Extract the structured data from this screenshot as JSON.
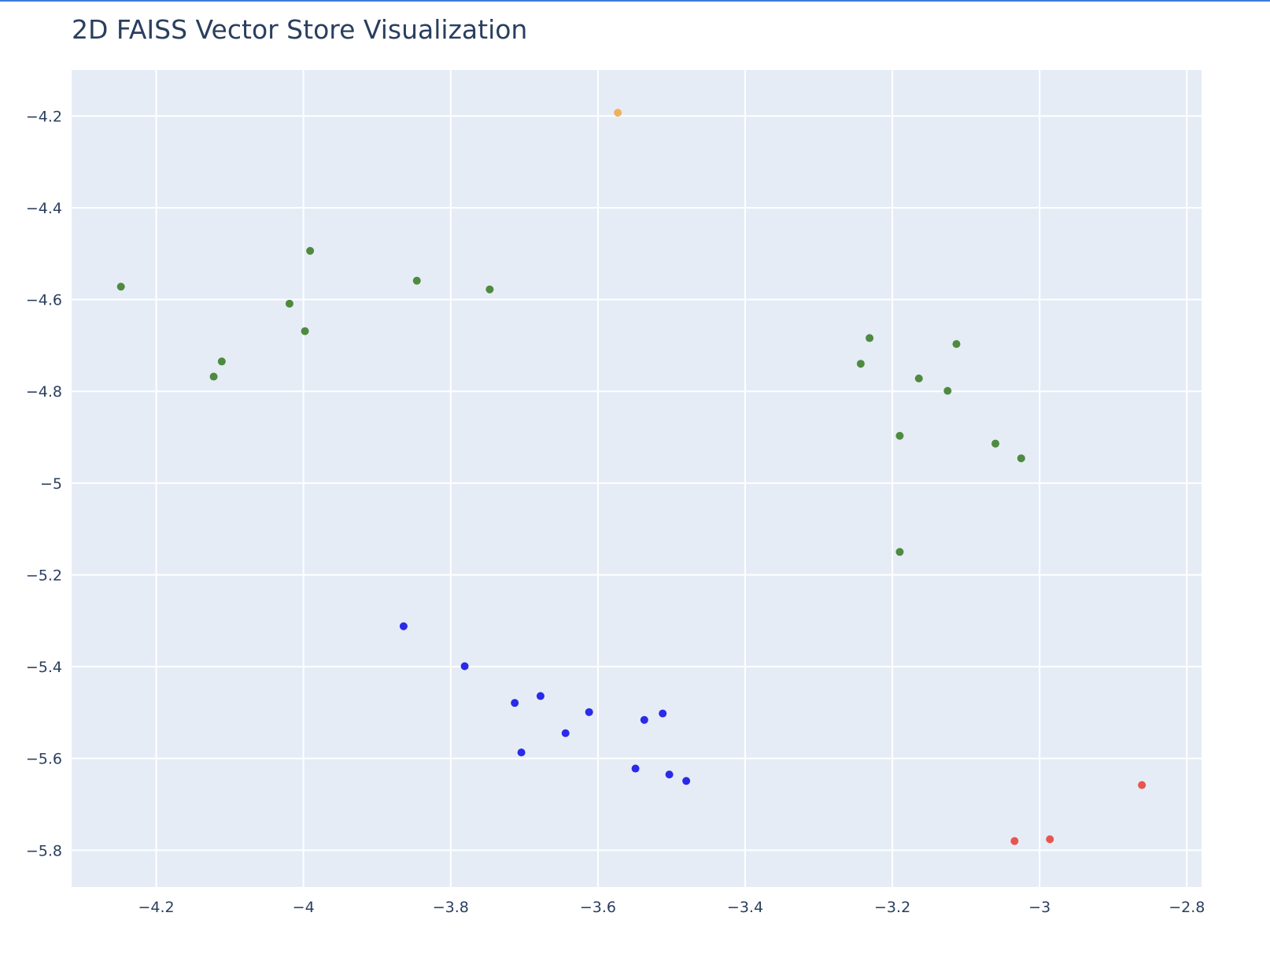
{
  "window": {
    "accent_color": "#3b7dd8"
  },
  "chart_data": {
    "type": "scatter",
    "title": "2D FAISS Vector Store Visualization",
    "xlabel": "",
    "ylabel": "",
    "xlim": [
      -4.315,
      -2.78
    ],
    "ylim": [
      -5.88,
      -4.1
    ],
    "x_ticks": [
      -4.2,
      -4.0,
      -3.8,
      -3.6,
      -3.4,
      -3.2,
      -3.0,
      -2.8
    ],
    "y_ticks": [
      -4.2,
      -4.4,
      -4.6,
      -4.8,
      -5.0,
      -5.2,
      -5.4,
      -5.6,
      -5.8
    ],
    "x_tick_labels": [
      "−4.2",
      "−4",
      "−3.8",
      "−3.6",
      "−3.4",
      "−3.2",
      "−3",
      "−2.8"
    ],
    "y_tick_labels": [
      "−4.2",
      "−4.4",
      "−4.6",
      "−4.8",
      "−5",
      "−5.2",
      "−5.4",
      "−5.6",
      "−5.8"
    ],
    "grid": true,
    "legend": "none",
    "colors": {
      "plot_background": "#e5ecf6",
      "grid": "#ffffff",
      "text": "#2a3f5f"
    },
    "series": [
      {
        "color": "#f0b15c",
        "points": [
          [
            -3.573,
            -4.193
          ]
        ]
      },
      {
        "color": "#4e8a3f",
        "points": [
          [
            -4.248,
            -4.572
          ],
          [
            -4.122,
            -4.768
          ],
          [
            -4.111,
            -4.735
          ],
          [
            -4.019,
            -4.609
          ],
          [
            -3.998,
            -4.669
          ],
          [
            -3.991,
            -4.494
          ],
          [
            -3.846,
            -4.559
          ],
          [
            -3.747,
            -4.578
          ],
          [
            -3.243,
            -4.74
          ],
          [
            -3.231,
            -4.684
          ],
          [
            -3.164,
            -4.772
          ],
          [
            -3.125,
            -4.799
          ],
          [
            -3.113,
            -4.697
          ],
          [
            -3.19,
            -4.897
          ],
          [
            -3.06,
            -4.914
          ],
          [
            -3.025,
            -4.946
          ],
          [
            -3.19,
            -5.15
          ]
        ]
      },
      {
        "color": "#2a2ae8",
        "points": [
          [
            -3.864,
            -5.312
          ],
          [
            -3.781,
            -5.399
          ],
          [
            -3.713,
            -5.479
          ],
          [
            -3.678,
            -5.464
          ],
          [
            -3.704,
            -5.587
          ],
          [
            -3.644,
            -5.545
          ],
          [
            -3.612,
            -5.499
          ],
          [
            -3.549,
            -5.622
          ],
          [
            -3.537,
            -5.516
          ],
          [
            -3.512,
            -5.502
          ],
          [
            -3.503,
            -5.635
          ],
          [
            -3.48,
            -5.649
          ]
        ]
      },
      {
        "color": "#e8554e",
        "points": [
          [
            -3.034,
            -5.78
          ],
          [
            -2.986,
            -5.776
          ],
          [
            -2.861,
            -5.658
          ]
        ]
      }
    ]
  }
}
